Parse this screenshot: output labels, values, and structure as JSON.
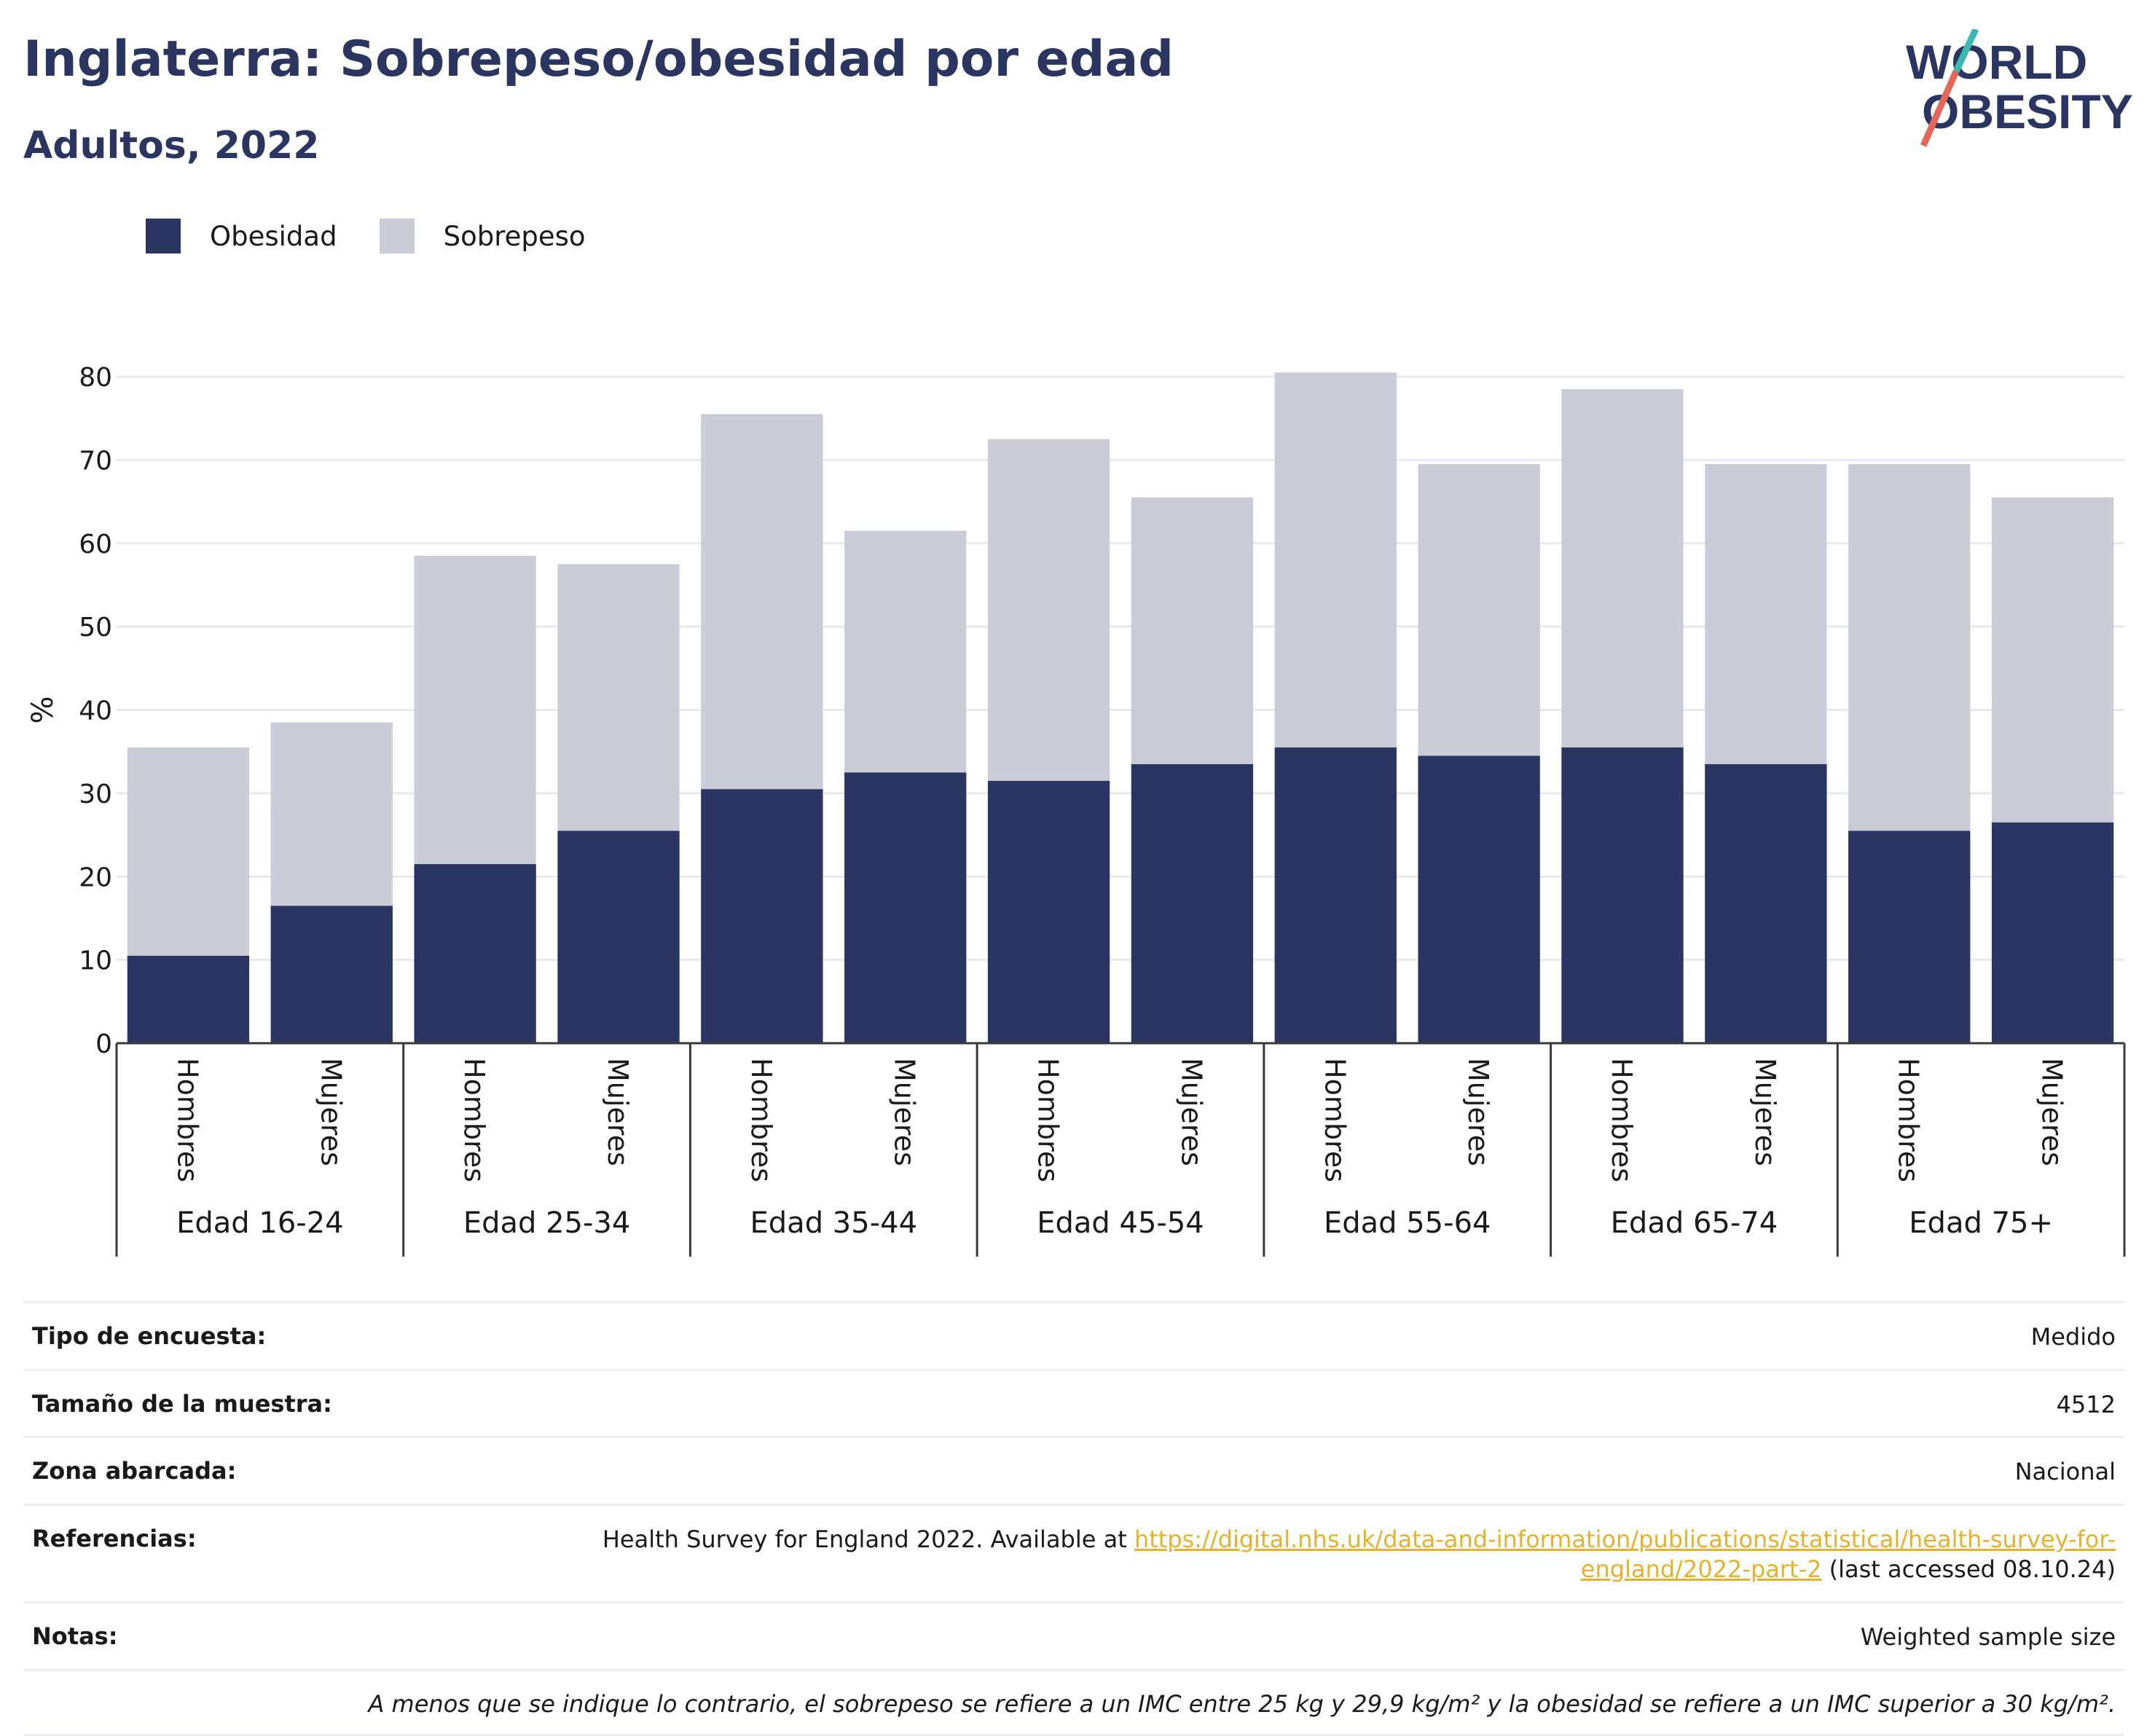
{
  "header": {
    "title": "Inglaterra: Sobrepeso/obesidad por edad",
    "subtitle": "Adultos, 2022"
  },
  "logo": {
    "line1": "WORLD",
    "line2": "OBESITY"
  },
  "legend": [
    {
      "label": "Obesidad",
      "color": "#2a3562"
    },
    {
      "label": "Sobrepeso",
      "color": "#caccd8"
    }
  ],
  "chart_data": {
    "type": "bar",
    "stacked": true,
    "ylabel": "%",
    "ylim": [
      0,
      80
    ],
    "yticks": [
      0,
      10,
      20,
      30,
      40,
      50,
      60,
      70,
      80
    ],
    "groups": [
      "Edad 16-24",
      "Edad 25-34",
      "Edad 35-44",
      "Edad 45-54",
      "Edad 55-64",
      "Edad 65-74",
      "Edad 75+"
    ],
    "subcategories": [
      "Hombres",
      "Mujeres"
    ],
    "series": [
      {
        "name": "Obesidad",
        "color": "#2a3562",
        "values": [
          10.5,
          16.5,
          21.5,
          25.5,
          30.5,
          32.5,
          31.5,
          33.5,
          35.5,
          34.5,
          35.5,
          33.5,
          25.5,
          26.5
        ]
      },
      {
        "name": "Sobrepeso",
        "color": "#caccd8",
        "values": [
          25,
          22,
          37,
          32,
          45,
          29,
          41,
          32,
          45,
          35,
          43,
          36,
          44,
          39
        ]
      }
    ],
    "grid": true,
    "legend_position": "top-left"
  },
  "meta": {
    "survey_label": "Tipo de encuesta:",
    "survey_value": "Medido",
    "sample_label": "Tamaño de la muestra:",
    "sample_value": "4512",
    "area_label": "Zona abarcada:",
    "area_value": "Nacional",
    "refs_label": "Referencias:",
    "refs_text": "Health Survey for England 2022. Available at",
    "refs_link": "https://digital.nhs.uk/data-and-information/publications/statistical/health-survey-for-england/2022-part-2",
    "refs_after": "(last accessed 08.10.24)",
    "notes_label": "Notas:",
    "notes_value": "Weighted sample size",
    "footnote": "A menos que se indique lo contrario, el sobrepeso se refiere a un IMC entre 25 kg y 29,9 kg/m² y la obesidad se refiere a un IMC superior a 30 kg/m²."
  }
}
